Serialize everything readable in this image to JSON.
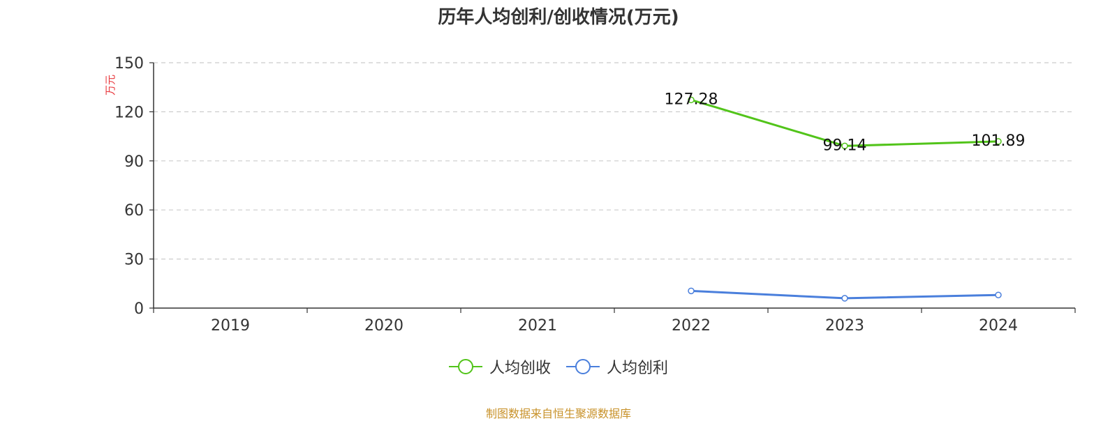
{
  "chart_data": {
    "type": "line",
    "title": "历年人均创利/创收情况(万元)",
    "ylabel": "万元",
    "xlabel": "",
    "categories": [
      "2019",
      "2020",
      "2021",
      "2022",
      "2023",
      "2024"
    ],
    "ylim": [
      0,
      150
    ],
    "yticks": [
      0,
      30,
      60,
      90,
      120,
      150
    ],
    "grid": true,
    "legend_position": "bottom",
    "series": [
      {
        "name": "人均创收",
        "color": "#52c41a",
        "values": [
          null,
          null,
          null,
          127.28,
          99.14,
          101.89
        ],
        "labels": [
          "",
          "",
          "",
          "127.28",
          "99.14",
          "101.89"
        ]
      },
      {
        "name": "人均创利",
        "color": "#4a7fdc",
        "values": [
          null,
          null,
          null,
          10.5,
          6.0,
          8.0
        ],
        "labels": [
          "",
          "",
          "",
          "",
          "",
          ""
        ]
      }
    ]
  },
  "source": "制图数据来自恒生聚源数据库"
}
